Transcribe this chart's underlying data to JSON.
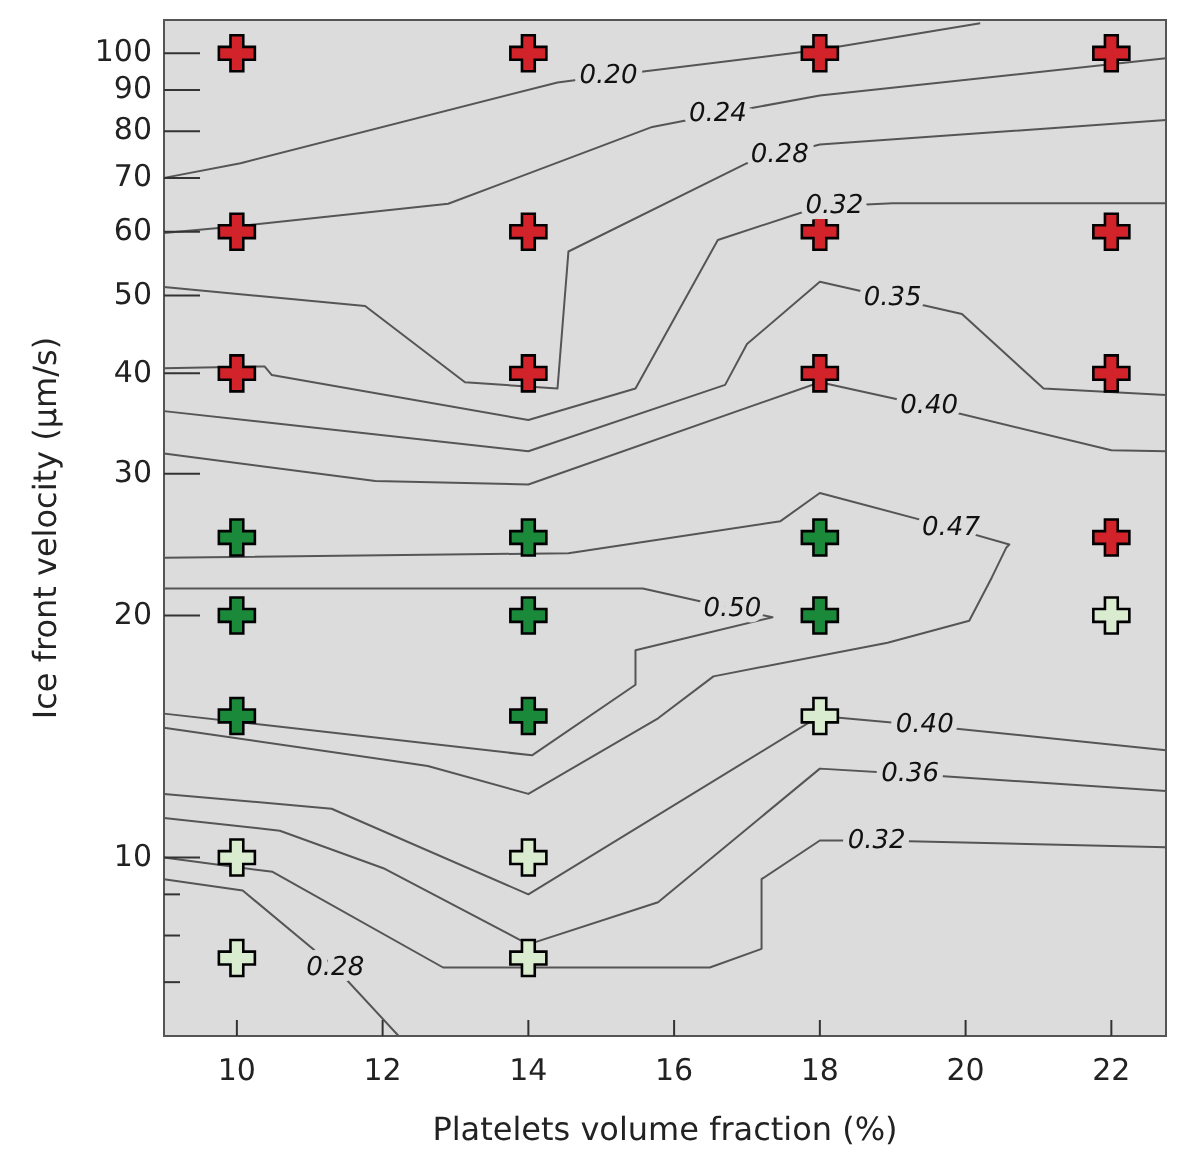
{
  "chart_data": {
    "type": "scatter",
    "xlabel": "Platelets volume fraction (%)",
    "ylabel": "Ice front velocity (µm/s)",
    "log": "y",
    "xlim": [
      9,
      22.75
    ],
    "ylim": [
      6,
      110
    ],
    "xticks": [
      10,
      12,
      14,
      16,
      18,
      20,
      22
    ],
    "yticks": [
      {
        "value": 7,
        "label": null
      },
      {
        "value": 8,
        "label": null
      },
      {
        "value": 9,
        "label": null
      },
      10,
      20,
      30,
      40,
      50,
      60,
      70,
      80,
      90,
      100
    ],
    "grid": false,
    "marker": "cross",
    "series": [
      {
        "color": "#d2232a",
        "x": [
          10,
          10,
          10,
          14,
          14,
          14,
          18,
          18,
          18,
          22,
          22,
          22,
          22
        ],
        "values": [
          100,
          60,
          40,
          100,
          60,
          40,
          100,
          60,
          40,
          100,
          60,
          40,
          25
        ]
      },
      {
        "color": "#1a8a3a",
        "x": [
          10,
          10,
          10,
          14,
          14,
          14,
          18,
          18
        ],
        "values": [
          25,
          20,
          15,
          25,
          20,
          15,
          25,
          20
        ]
      },
      {
        "color": "#d9ecd0",
        "x": [
          10,
          10,
          14,
          14,
          18,
          22
        ],
        "values": [
          10,
          7.5,
          10,
          7.5,
          15,
          20
        ]
      },
      {
        "type": "line",
        "color": "#555555",
        "marker": "none",
        "x": [
          9,
          10.05,
          14.4,
          15.1,
          18,
          20.2
        ],
        "values": [
          70,
          73,
          92,
          93.8,
          101,
          109
        ]
      },
      {
        "type": "line",
        "color": "#555555",
        "marker": "none",
        "x": [
          9,
          10.05,
          12.9,
          15.7,
          16.6,
          18,
          22.75
        ],
        "values": [
          59.8,
          61,
          65,
          81,
          84,
          88.6,
          98.6
        ]
      },
      {
        "type": "line",
        "color": "#555555",
        "marker": "none",
        "x": [
          9,
          11.76,
          13.13,
          14.4,
          14.55,
          17,
          17.45,
          18,
          22.75
        ],
        "values": [
          51.2,
          48.5,
          39,
          38.3,
          56.7,
          73,
          74.8,
          77,
          82.6
        ]
      },
      {
        "type": "line",
        "color": "#555555",
        "marker": "none",
        "x": [
          9,
          10.38,
          10.48,
          14,
          15.47,
          16.6,
          18,
          18.2,
          19,
          22.75
        ],
        "values": [
          40.6,
          40.8,
          39.8,
          35,
          38.3,
          58.6,
          64.5,
          64.6,
          65.1,
          65.1
        ]
      },
      {
        "type": "line",
        "color": "#555555",
        "marker": "none",
        "x": [
          9,
          14,
          16.7,
          17,
          18,
          19,
          19.95,
          21.07,
          22.75
        ],
        "values": [
          35.9,
          32,
          38.7,
          43.5,
          52,
          49.6,
          47.4,
          38.3,
          37.6
        ]
      },
      {
        "type": "line",
        "color": "#555555",
        "marker": "none",
        "x": [
          9,
          11.9,
          14,
          18,
          19.5,
          22,
          22.75
        ],
        "values": [
          31.8,
          29.4,
          29.1,
          39,
          36.4,
          32.1,
          32
        ]
      },
      {
        "type": "line",
        "color": "#555555",
        "marker": "none",
        "x": [
          9,
          14.55,
          17.46,
          18,
          19.8,
          20.6,
          20.56,
          20.36,
          20.05,
          18.93,
          16.54,
          15.78,
          14,
          12.62,
          9
        ],
        "values": [
          23.6,
          23.9,
          26.2,
          28.4,
          25.7,
          24.5,
          24.3,
          22.3,
          19.7,
          18.5,
          16.8,
          14.9,
          12,
          13,
          14.5
        ]
      },
      {
        "type": "line",
        "color": "#555555",
        "marker": "none",
        "x": [
          9,
          15.57,
          16.8,
          17.35,
          15.47,
          15.47,
          14.05,
          9
        ],
        "values": [
          21.6,
          21.6,
          20.4,
          19.9,
          18.1,
          16.4,
          13.4,
          15.1
        ]
      },
      {
        "type": "line",
        "color": "#555555",
        "marker": "none",
        "x": [
          9,
          11.3,
          14,
          18,
          19.44,
          22.75
        ],
        "values": [
          12,
          11.5,
          9,
          15,
          14.6,
          13.6
        ]
      },
      {
        "type": "line",
        "color": "#555555",
        "marker": "none",
        "x": [
          9,
          10.59,
          12.01,
          14,
          15.78,
          18,
          19.24,
          22.75
        ],
        "values": [
          11.2,
          10.8,
          9.7,
          7.8,
          8.8,
          12.9,
          12.7,
          12.1
        ]
      },
      {
        "type": "line",
        "color": "#555555",
        "marker": "none",
        "x": [
          9,
          10.49,
          12.83,
          16.49,
          17.2,
          17.2,
          18,
          18.78,
          22.75
        ],
        "values": [
          10,
          9.6,
          7.3,
          7.3,
          7.7,
          9.4,
          10.5,
          10.5,
          10.3
        ]
      },
      {
        "type": "line",
        "color": "#555555",
        "marker": "none",
        "x": [
          9,
          10.08,
          11.35,
          12.22
        ],
        "values": [
          9.4,
          9.1,
          7.3,
          6
        ]
      }
    ],
    "annotations": [
      {
        "text": "0.20",
        "x": 15.1,
        "y": 93.8
      },
      {
        "text": "0.24",
        "x": 16.6,
        "y": 84
      },
      {
        "text": "0.28",
        "x": 17.45,
        "y": 74.8
      },
      {
        "text": "0.32",
        "x": 18.2,
        "y": 64.6
      },
      {
        "text": "0.35",
        "x": 19,
        "y": 49.6
      },
      {
        "text": "0.40",
        "x": 19.5,
        "y": 36.4
      },
      {
        "text": "0.47",
        "x": 19.8,
        "y": 25.7
      },
      {
        "text": "0.50",
        "x": 16.8,
        "y": 20.4
      },
      {
        "text": "0.40",
        "x": 19.44,
        "y": 14.6
      },
      {
        "text": "0.36",
        "x": 19.24,
        "y": 12.7
      },
      {
        "text": "0.32",
        "x": 18.78,
        "y": 10.5
      },
      {
        "text": "0.28",
        "x": 11.35,
        "y": 7.3
      }
    ]
  }
}
